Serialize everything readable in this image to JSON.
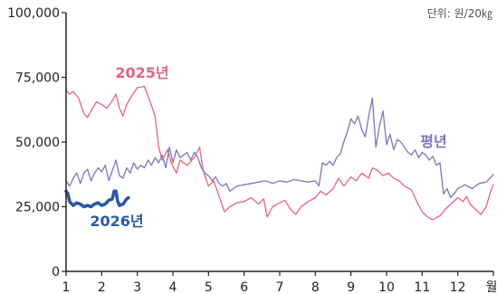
{
  "chart_data": {
    "type": "line",
    "unit": "단위: 원/20㎏",
    "xlim": [
      1,
      13
    ],
    "ylim": [
      0,
      100000
    ],
    "x_ticks": [
      1,
      2,
      3,
      4,
      5,
      6,
      7,
      8,
      9,
      10,
      11,
      12
    ],
    "x_tick_labels": [
      "1",
      "2",
      "3",
      "4",
      "5",
      "6",
      "7",
      "8",
      "9",
      "10",
      "11",
      "12"
    ],
    "x_end_label": "월",
    "y_ticks": [
      0,
      25000,
      50000,
      75000,
      100000
    ],
    "y_tick_labels": [
      "0",
      "25,000",
      "50,000",
      "75,000",
      "100,000"
    ],
    "grid": false,
    "series": [
      {
        "name": "2025년",
        "color": "#e8637e",
        "points": [
          [
            1.0,
            70000
          ],
          [
            1.1,
            68500
          ],
          [
            1.2,
            69500
          ],
          [
            1.35,
            67000
          ],
          [
            1.5,
            61000
          ],
          [
            1.6,
            59500
          ],
          [
            1.7,
            62000
          ],
          [
            1.85,
            65500
          ],
          [
            2.0,
            64500
          ],
          [
            2.15,
            63000
          ],
          [
            2.3,
            66000
          ],
          [
            2.4,
            68500
          ],
          [
            2.5,
            63000
          ],
          [
            2.6,
            60000
          ],
          [
            2.7,
            64500
          ],
          [
            2.85,
            68000
          ],
          [
            3.0,
            71000
          ],
          [
            3.2,
            71500
          ],
          [
            3.35,
            66000
          ],
          [
            3.5,
            60000
          ],
          [
            3.6,
            48000
          ],
          [
            3.7,
            43000
          ],
          [
            3.85,
            47000
          ],
          [
            3.95,
            42000
          ],
          [
            4.1,
            38000
          ],
          [
            4.2,
            43000
          ],
          [
            4.4,
            41000
          ],
          [
            4.6,
            44000
          ],
          [
            4.75,
            48000
          ],
          [
            4.85,
            39000
          ],
          [
            5.0,
            33000
          ],
          [
            5.15,
            35000
          ],
          [
            5.3,
            29000
          ],
          [
            5.45,
            23000
          ],
          [
            5.6,
            25000
          ],
          [
            5.8,
            26500
          ],
          [
            6.0,
            27000
          ],
          [
            6.2,
            28500
          ],
          [
            6.4,
            26000
          ],
          [
            6.55,
            28000
          ],
          [
            6.65,
            21000
          ],
          [
            6.8,
            25000
          ],
          [
            7.0,
            26500
          ],
          [
            7.15,
            27500
          ],
          [
            7.3,
            24000
          ],
          [
            7.45,
            22000
          ],
          [
            7.6,
            25000
          ],
          [
            7.8,
            27000
          ],
          [
            8.0,
            28500
          ],
          [
            8.15,
            31000
          ],
          [
            8.3,
            29500
          ],
          [
            8.5,
            32000
          ],
          [
            8.65,
            36000
          ],
          [
            8.8,
            33000
          ],
          [
            9.0,
            36500
          ],
          [
            9.15,
            35000
          ],
          [
            9.3,
            38000
          ],
          [
            9.5,
            36000
          ],
          [
            9.6,
            40000
          ],
          [
            9.75,
            39000
          ],
          [
            9.9,
            37000
          ],
          [
            10.05,
            38000
          ],
          [
            10.2,
            36000
          ],
          [
            10.35,
            35000
          ],
          [
            10.5,
            33000
          ],
          [
            10.7,
            31500
          ],
          [
            10.85,
            27000
          ],
          [
            11.0,
            23000
          ],
          [
            11.15,
            21000
          ],
          [
            11.3,
            20000
          ],
          [
            11.5,
            21500
          ],
          [
            11.65,
            24000
          ],
          [
            11.8,
            26000
          ],
          [
            12.0,
            28500
          ],
          [
            12.15,
            27000
          ],
          [
            12.25,
            29000
          ],
          [
            12.35,
            26000
          ],
          [
            12.5,
            24000
          ],
          [
            12.65,
            22000
          ],
          [
            12.8,
            25000
          ],
          [
            12.9,
            30000
          ],
          [
            13.0,
            33500
          ]
        ]
      },
      {
        "name": "평년",
        "color": "#7b78b8",
        "points": [
          [
            1.0,
            35000
          ],
          [
            1.1,
            33000
          ],
          [
            1.2,
            36000
          ],
          [
            1.3,
            38000
          ],
          [
            1.4,
            34000
          ],
          [
            1.5,
            38000
          ],
          [
            1.6,
            39500
          ],
          [
            1.7,
            35000
          ],
          [
            1.8,
            38000
          ],
          [
            1.9,
            40000
          ],
          [
            2.0,
            38500
          ],
          [
            2.1,
            41000
          ],
          [
            2.2,
            35000
          ],
          [
            2.3,
            39000
          ],
          [
            2.4,
            43000
          ],
          [
            2.5,
            37000
          ],
          [
            2.6,
            36000
          ],
          [
            2.7,
            40000
          ],
          [
            2.8,
            38000
          ],
          [
            2.9,
            42000
          ],
          [
            3.0,
            39500
          ],
          [
            3.1,
            41000
          ],
          [
            3.2,
            40000
          ],
          [
            3.3,
            43000
          ],
          [
            3.4,
            41000
          ],
          [
            3.5,
            44000
          ],
          [
            3.6,
            42000
          ],
          [
            3.7,
            45000
          ],
          [
            3.8,
            40000
          ],
          [
            3.9,
            48000
          ],
          [
            4.0,
            42000
          ],
          [
            4.1,
            47000
          ],
          [
            4.2,
            44000
          ],
          [
            4.3,
            45000
          ],
          [
            4.4,
            46000
          ],
          [
            4.5,
            43000
          ],
          [
            4.6,
            46000
          ],
          [
            4.7,
            44000
          ],
          [
            4.8,
            40000
          ],
          [
            4.9,
            38000
          ],
          [
            5.0,
            37000
          ],
          [
            5.1,
            35000
          ],
          [
            5.2,
            36500
          ],
          [
            5.3,
            34000
          ],
          [
            5.4,
            33000
          ],
          [
            5.5,
            34000
          ],
          [
            5.6,
            31000
          ],
          [
            5.7,
            32000
          ],
          [
            5.8,
            33000
          ],
          [
            6.0,
            33500
          ],
          [
            6.2,
            34000
          ],
          [
            6.4,
            34500
          ],
          [
            6.6,
            35000
          ],
          [
            6.8,
            34000
          ],
          [
            7.0,
            35000
          ],
          [
            7.2,
            34500
          ],
          [
            7.4,
            35500
          ],
          [
            7.6,
            35000
          ],
          [
            7.8,
            34500
          ],
          [
            8.0,
            35000
          ],
          [
            8.1,
            33000
          ],
          [
            8.2,
            42000
          ],
          [
            8.3,
            41000
          ],
          [
            8.4,
            42500
          ],
          [
            8.5,
            41000
          ],
          [
            8.6,
            44000
          ],
          [
            8.7,
            45500
          ],
          [
            8.8,
            50000
          ],
          [
            8.9,
            54000
          ],
          [
            9.0,
            59000
          ],
          [
            9.1,
            57000
          ],
          [
            9.2,
            60000
          ],
          [
            9.3,
            55000
          ],
          [
            9.4,
            52000
          ],
          [
            9.5,
            60000
          ],
          [
            9.6,
            67000
          ],
          [
            9.7,
            48000
          ],
          [
            9.8,
            56000
          ],
          [
            9.9,
            62000
          ],
          [
            10.0,
            49000
          ],
          [
            10.1,
            53000
          ],
          [
            10.2,
            47000
          ],
          [
            10.3,
            51000
          ],
          [
            10.4,
            50000
          ],
          [
            10.5,
            48000
          ],
          [
            10.6,
            46000
          ],
          [
            10.7,
            45000
          ],
          [
            10.8,
            47000
          ],
          [
            10.9,
            44000
          ],
          [
            11.0,
            46000
          ],
          [
            11.1,
            45000
          ],
          [
            11.2,
            43000
          ],
          [
            11.3,
            44500
          ],
          [
            11.4,
            41000
          ],
          [
            11.5,
            42000
          ],
          [
            11.6,
            30000
          ],
          [
            11.7,
            32000
          ],
          [
            11.8,
            28500
          ],
          [
            11.9,
            30000
          ],
          [
            12.0,
            32000
          ],
          [
            12.2,
            33500
          ],
          [
            12.4,
            32000
          ],
          [
            12.6,
            34000
          ],
          [
            12.8,
            34500
          ],
          [
            12.9,
            36000
          ],
          [
            13.0,
            37500
          ]
        ]
      },
      {
        "name": "2026년",
        "color": "#2b5aa3",
        "points": [
          [
            1.0,
            31000
          ],
          [
            1.05,
            30000
          ],
          [
            1.1,
            27000
          ],
          [
            1.2,
            25500
          ],
          [
            1.3,
            26500
          ],
          [
            1.4,
            26000
          ],
          [
            1.5,
            25000
          ],
          [
            1.6,
            25500
          ],
          [
            1.7,
            25000
          ],
          [
            1.8,
            26000
          ],
          [
            1.9,
            26500
          ],
          [
            2.0,
            25500
          ],
          [
            2.1,
            26000
          ],
          [
            2.2,
            27500
          ],
          [
            2.3,
            28000
          ],
          [
            2.35,
            31000
          ],
          [
            2.4,
            31000
          ],
          [
            2.45,
            27000
          ],
          [
            2.5,
            25500
          ],
          [
            2.6,
            26000
          ],
          [
            2.7,
            28000
          ],
          [
            2.75,
            28500
          ]
        ]
      }
    ]
  }
}
